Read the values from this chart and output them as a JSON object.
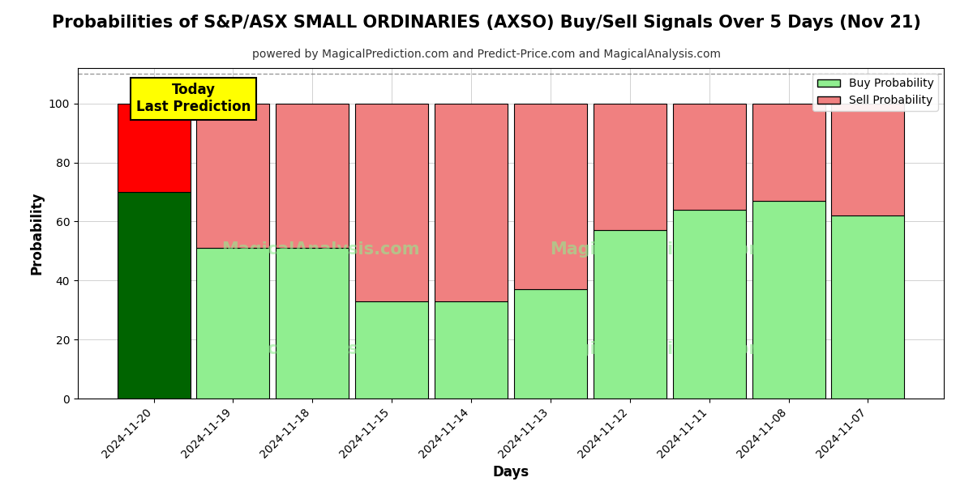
{
  "title": "Probabilities of S&P/ASX SMALL ORDINARIES (AXSO) Buy/Sell Signals Over 5 Days (Nov 21)",
  "subtitle": "powered by MagicalPrediction.com and Predict-Price.com and MagicalAnalysis.com",
  "xlabel": "Days",
  "ylabel": "Probability",
  "categories": [
    "2024-11-20",
    "2024-11-19",
    "2024-11-18",
    "2024-11-15",
    "2024-11-14",
    "2024-11-13",
    "2024-11-12",
    "2024-11-11",
    "2024-11-08",
    "2024-11-07"
  ],
  "buy_values": [
    70,
    51,
    51,
    33,
    33,
    37,
    57,
    64,
    67,
    62
  ],
  "sell_values": [
    30,
    49,
    49,
    67,
    67,
    63,
    43,
    36,
    33,
    38
  ],
  "today_buy_color": "#006400",
  "today_sell_color": "#FF0000",
  "buy_color": "#90EE90",
  "sell_color": "#F08080",
  "today_label_bg": "#FFFF00",
  "today_label_text": "Today\nLast Prediction",
  "ylim": [
    0,
    112
  ],
  "yticks": [
    0,
    20,
    40,
    60,
    80,
    100
  ],
  "dashed_line_y": 110,
  "legend_buy_label": "Buy Probability",
  "legend_sell_label": "Sell Probability",
  "bar_width": 0.92,
  "title_fontsize": 15,
  "subtitle_fontsize": 10,
  "axis_label_fontsize": 12,
  "tick_fontsize": 10
}
